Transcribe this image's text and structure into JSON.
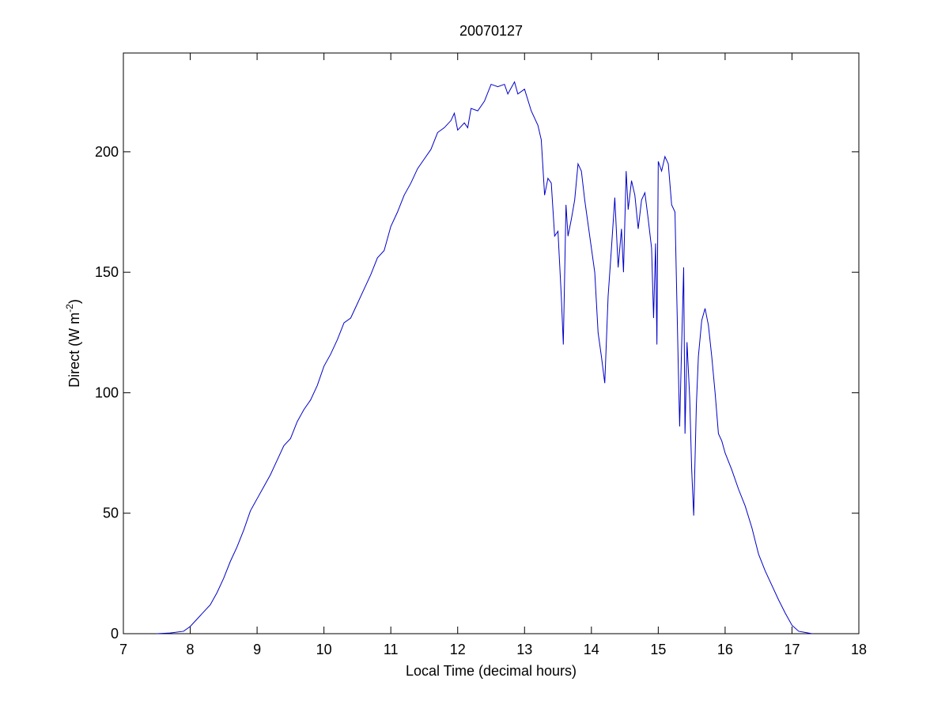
{
  "chart_data": {
    "type": "line",
    "title": "20070127",
    "xlabel": "Local Time (decimal hours)",
    "ylabel": [
      "Direct (W m",
      "-2",
      ")"
    ],
    "xlim": [
      7,
      18
    ],
    "ylim": [
      0,
      241
    ],
    "xticks": [
      7,
      8,
      9,
      10,
      11,
      12,
      13,
      14,
      15,
      16,
      17,
      18
    ],
    "yticks": [
      0,
      50,
      100,
      150,
      200
    ],
    "grid": false,
    "series": [
      {
        "color": "#0000c8",
        "x": [
          7.5,
          7.7,
          7.9,
          8.0,
          8.1,
          8.2,
          8.3,
          8.4,
          8.5,
          8.6,
          8.7,
          8.8,
          8.9,
          9.0,
          9.1,
          9.2,
          9.3,
          9.4,
          9.5,
          9.6,
          9.7,
          9.8,
          9.9,
          10.0,
          10.1,
          10.2,
          10.3,
          10.4,
          10.5,
          10.6,
          10.7,
          10.8,
          10.9,
          11.0,
          11.1,
          11.2,
          11.3,
          11.4,
          11.5,
          11.6,
          11.7,
          11.8,
          11.9,
          11.95,
          12.0,
          12.1,
          12.15,
          12.2,
          12.3,
          12.4,
          12.5,
          12.6,
          12.7,
          12.75,
          12.85,
          12.9,
          13.0,
          13.1,
          13.2,
          13.25,
          13.3,
          13.35,
          13.4,
          13.45,
          13.5,
          13.55,
          13.58,
          13.62,
          13.65,
          13.7,
          13.75,
          13.8,
          13.85,
          13.9,
          13.95,
          14.0,
          14.05,
          14.1,
          14.15,
          14.2,
          14.25,
          14.3,
          14.35,
          14.4,
          14.45,
          14.48,
          14.52,
          14.55,
          14.6,
          14.65,
          14.7,
          14.75,
          14.8,
          14.85,
          14.9,
          14.93,
          14.96,
          14.98,
          15.0,
          15.05,
          15.1,
          15.15,
          15.2,
          15.25,
          15.3,
          15.32,
          15.35,
          15.38,
          15.4,
          15.43,
          15.47,
          15.5,
          15.53,
          15.57,
          15.6,
          15.65,
          15.7,
          15.75,
          15.8,
          15.85,
          15.9,
          15.95,
          16.0,
          16.1,
          16.2,
          16.3,
          16.4,
          16.5,
          16.6,
          16.7,
          16.8,
          16.9,
          17.0,
          17.1,
          17.3
        ],
        "values": [
          0,
          0.3,
          1,
          3,
          6,
          9,
          12,
          17,
          23,
          30,
          36,
          43,
          51,
          56,
          61,
          66,
          72,
          78,
          81,
          88,
          93,
          97,
          103,
          111,
          116,
          122,
          129,
          131,
          137,
          143,
          149,
          156,
          159,
          169,
          175,
          182,
          187,
          193,
          197,
          201,
          208,
          210,
          213,
          216,
          209,
          212,
          210,
          218,
          217,
          221,
          228,
          227,
          228,
          224,
          229,
          224,
          226,
          217,
          211,
          205,
          182,
          189,
          187,
          165,
          167,
          140,
          120,
          178,
          165,
          172,
          180,
          195,
          192,
          180,
          170,
          160,
          150,
          125,
          115,
          104,
          140,
          160,
          181,
          152,
          168,
          150,
          192,
          176,
          188,
          182,
          168,
          180,
          183,
          172,
          160,
          131,
          162,
          120,
          196,
          192,
          198,
          195,
          178,
          175,
          110,
          86,
          120,
          152,
          83,
          121,
          98,
          68,
          49,
          95,
          115,
          130,
          135,
          128,
          115,
          100,
          83,
          80,
          75,
          68,
          60,
          53,
          44,
          33,
          26,
          20,
          14,
          8.5,
          3.5,
          1,
          0
        ]
      }
    ]
  }
}
